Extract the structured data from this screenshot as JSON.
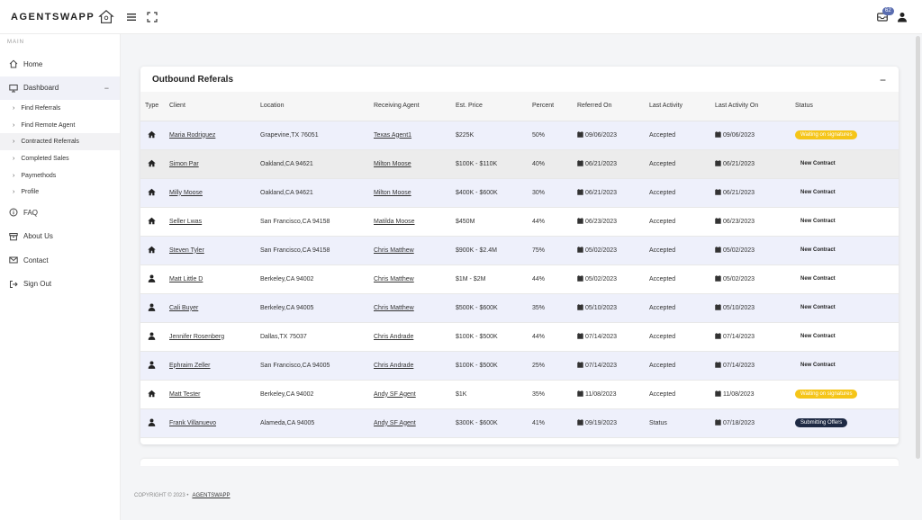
{
  "brand": {
    "name": "AGENTSWAPP",
    "logo_icon": "house-network-icon"
  },
  "header": {
    "notification_count": "62",
    "menu_icon": "hamburger-icon",
    "expand_icon": "fullscreen-icon",
    "mail_icon": "inbox-icon",
    "user_icon": "user-icon"
  },
  "sidebar": {
    "section": "MAIN",
    "home": "Home",
    "dashboard": "Dashboard",
    "dashboard_caret": "−",
    "sub_items": [
      "Find Referrals",
      "Find Remote Agent",
      "Contracted Referrals",
      "Completed Sales",
      "Paymethods",
      "Profile"
    ],
    "faq": "FAQ",
    "about": "About Us",
    "contact": "Contact",
    "signout": "Sign Out"
  },
  "card": {
    "title": "Outbound Referals",
    "collapse": "−",
    "columns": [
      "Type",
      "Client",
      "Location",
      "Receiving Agent",
      "Est. Price",
      "Percent",
      "Referred On",
      "Last Activity",
      "Last Activity On",
      "Status"
    ],
    "rows": [
      {
        "type": "home",
        "client": "Maria Rodriguez",
        "location": "Grapevine,TX 76051",
        "agent": "Texas Agent1",
        "price": "$225K",
        "percent": "50%",
        "referred": "09/06/2023",
        "activity": "Accepted",
        "activity_on": "09/06/2023",
        "status": "Waiting on signatures",
        "status_style": "yellow"
      },
      {
        "type": "home",
        "client": "Simon Par",
        "location": "Oakland,CA 94621",
        "agent": "Milton Moose",
        "price": "$100K - $110K",
        "percent": "40%",
        "referred": "06/21/2023",
        "activity": "Accepted",
        "activity_on": "06/21/2023",
        "status": "New Contract",
        "status_style": "plain"
      },
      {
        "type": "home",
        "client": "Milly Moose",
        "location": "Oakland,CA 94621",
        "agent": "Milton Moose",
        "price": "$400K - $600K",
        "percent": "30%",
        "referred": "06/21/2023",
        "activity": "Accepted",
        "activity_on": "06/21/2023",
        "status": "New Contract",
        "status_style": "plain"
      },
      {
        "type": "home",
        "client": "Seller Lwas",
        "location": "San Francisco,CA 94158",
        "agent": "Matilda Moose",
        "price": "$450M",
        "percent": "44%",
        "referred": "06/23/2023",
        "activity": "Accepted",
        "activity_on": "06/23/2023",
        "status": "New Contract",
        "status_style": "plain"
      },
      {
        "type": "home",
        "client": "Steven Tyler",
        "location": "San Francisco,CA 94158",
        "agent": "Chris Matthew",
        "price": "$900K - $2.4M",
        "percent": "75%",
        "referred": "05/02/2023",
        "activity": "Accepted",
        "activity_on": "05/02/2023",
        "status": "New Contract",
        "status_style": "plain"
      },
      {
        "type": "person",
        "client": "Matt Little D",
        "location": "Berkeley,CA 94002",
        "agent": "Chris Matthew",
        "price": "$1M - $2M",
        "percent": "44%",
        "referred": "05/02/2023",
        "activity": "Accepted",
        "activity_on": "05/02/2023",
        "status": "New Contract",
        "status_style": "plain"
      },
      {
        "type": "person",
        "client": "Cali Buyer",
        "location": "Berkeley,CA 94005",
        "agent": "Chris Matthew",
        "price": "$500K - $600K",
        "percent": "35%",
        "referred": "05/10/2023",
        "activity": "Accepted",
        "activity_on": "05/10/2023",
        "status": "New Contract",
        "status_style": "plain"
      },
      {
        "type": "person",
        "client": "Jennifer Rosenberg",
        "location": "Dallas,TX 75037",
        "agent": "Chris Andrade",
        "price": "$100K - $500K",
        "percent": "44%",
        "referred": "07/14/2023",
        "activity": "Accepted",
        "activity_on": "07/14/2023",
        "status": "New Contract",
        "status_style": "plain"
      },
      {
        "type": "person",
        "client": "Ephraim Zeller",
        "location": "San Francisco,CA 94005",
        "agent": "Chris Andrade",
        "price": "$100K - $500K",
        "percent": "25%",
        "referred": "07/14/2023",
        "activity": "Accepted",
        "activity_on": "07/14/2023",
        "status": "New Contract",
        "status_style": "plain"
      },
      {
        "type": "home",
        "client": "Matt Tester",
        "location": "Berkeley,CA 94002",
        "agent": "Andy SF Agent",
        "price": "$1K",
        "percent": "35%",
        "referred": "11/08/2023",
        "activity": "Accepted",
        "activity_on": "11/08/2023",
        "status": "Waiting on signatures",
        "status_style": "yellow"
      },
      {
        "type": "person",
        "client": "Frank Villanuevo",
        "location": "Alameda,CA 94005",
        "agent": "Andy SF Agent",
        "price": "$300K - $600K",
        "percent": "41%",
        "referred": "09/19/2023",
        "activity": "Status",
        "activity_on": "07/18/2023",
        "status": "Submitting Offers",
        "status_style": "navy"
      }
    ]
  },
  "footer": {
    "copyright": "COPYRIGHT © 2023 •",
    "link": "AGENTSWAPP"
  },
  "colors": {
    "accent": "#5a6db0",
    "pill_yellow": "#f5c518",
    "pill_navy": "#1e2a44",
    "row_alt": "#eef0fb"
  }
}
